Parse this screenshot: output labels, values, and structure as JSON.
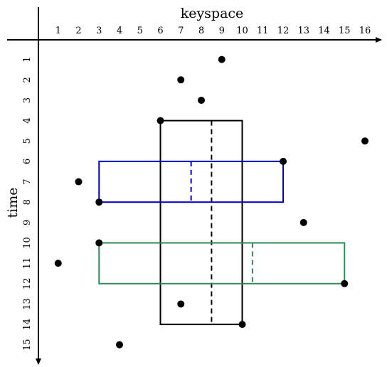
{
  "diagram": {
    "x_axis_title": "keyspace",
    "y_axis_title": "time",
    "x_ticks": [
      "1",
      "2",
      "3",
      "4",
      "5",
      "6",
      "7",
      "8",
      "9",
      "10",
      "11",
      "12",
      "13",
      "14",
      "15",
      "16"
    ],
    "y_ticks": [
      "1",
      "2",
      "3",
      "4",
      "5",
      "6",
      "7",
      "8",
      "9",
      "10",
      "11",
      "12",
      "13",
      "14",
      "15"
    ],
    "points": [
      {
        "key": 9,
        "time": 1
      },
      {
        "key": 7,
        "time": 2
      },
      {
        "key": 8,
        "time": 3
      },
      {
        "key": 6,
        "time": 4
      },
      {
        "key": 16,
        "time": 5
      },
      {
        "key": 12,
        "time": 6
      },
      {
        "key": 2,
        "time": 7
      },
      {
        "key": 3,
        "time": 8
      },
      {
        "key": 13,
        "time": 9
      },
      {
        "key": 3,
        "time": 10
      },
      {
        "key": 1,
        "time": 11
      },
      {
        "key": 15,
        "time": 12
      },
      {
        "key": 7,
        "time": 13
      },
      {
        "key": 10,
        "time": 14
      },
      {
        "key": 4,
        "time": 15
      }
    ],
    "boxes": [
      {
        "name": "black",
        "color": "#000000",
        "key_min": 6,
        "key_max": 10,
        "time_min": 4,
        "time_max": 14,
        "split_key": 8.5
      },
      {
        "name": "blue",
        "color": "#0000c8",
        "key_min": 3,
        "key_max": 12,
        "time_min": 6,
        "time_max": 8,
        "split_key": 7.5
      },
      {
        "name": "green",
        "color": "#2e8b57",
        "key_min": 3,
        "key_max": 15,
        "time_min": 10,
        "time_max": 12,
        "split_key": 10.5
      }
    ]
  }
}
